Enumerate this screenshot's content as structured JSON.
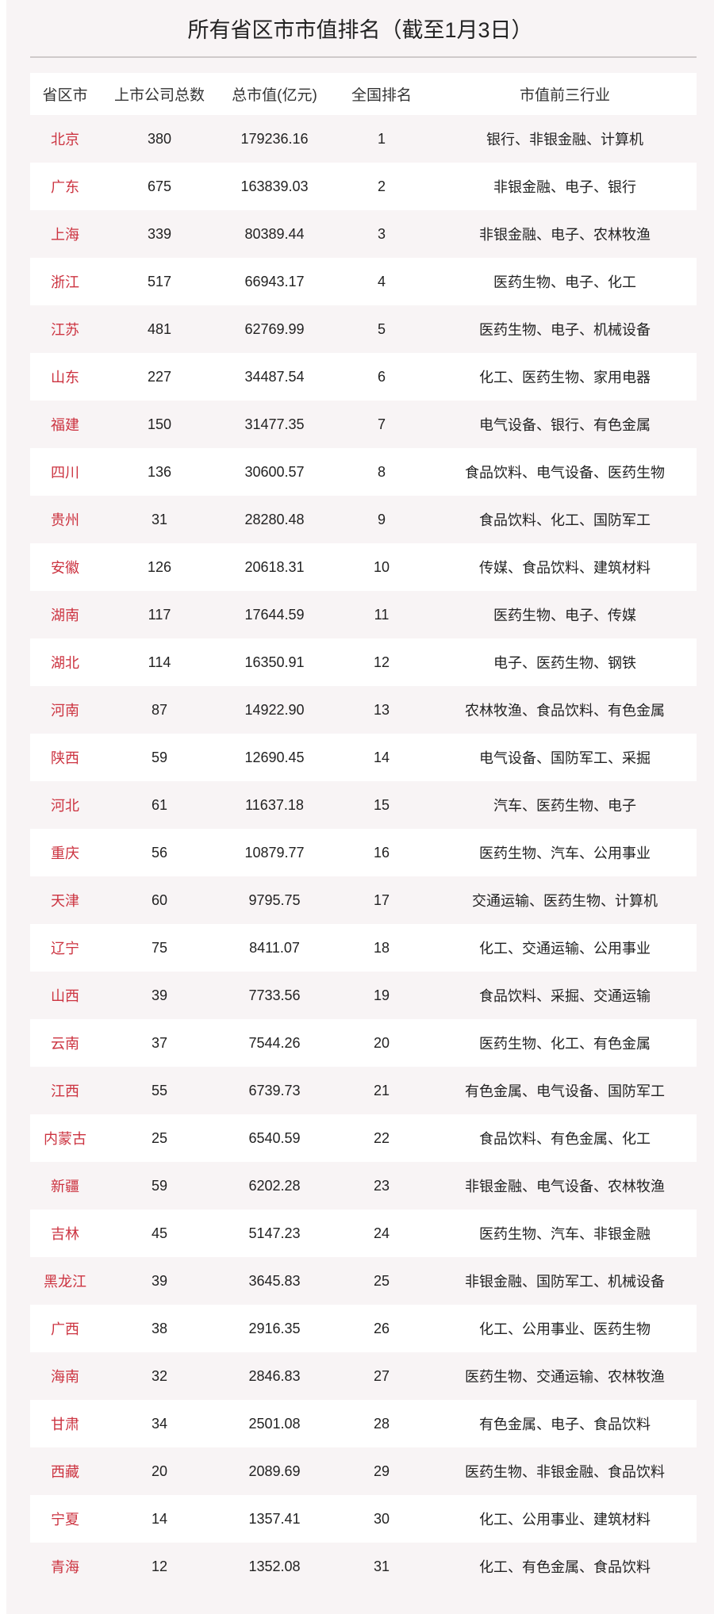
{
  "title": "所有省区市市值排名（截至1月3日）",
  "colors": {
    "province": "#cc3340",
    "background": "#f8f4f5"
  },
  "headers": [
    "省区市",
    "上市公司总数",
    "总市值(亿元)",
    "全国排名",
    "市值前三行业"
  ],
  "rows": [
    [
      "北京",
      "380",
      "179236.16",
      "1",
      "银行、非银金融、计算机"
    ],
    [
      "广东",
      "675",
      "163839.03",
      "2",
      "非银金融、电子、银行"
    ],
    [
      "上海",
      "339",
      "80389.44",
      "3",
      "非银金融、电子、农林牧渔"
    ],
    [
      "浙江",
      "517",
      "66943.17",
      "4",
      "医药生物、电子、化工"
    ],
    [
      "江苏",
      "481",
      "62769.99",
      "5",
      "医药生物、电子、机械设备"
    ],
    [
      "山东",
      "227",
      "34487.54",
      "6",
      "化工、医药生物、家用电器"
    ],
    [
      "福建",
      "150",
      "31477.35",
      "7",
      "电气设备、银行、有色金属"
    ],
    [
      "四川",
      "136",
      "30600.57",
      "8",
      "食品饮料、电气设备、医药生物"
    ],
    [
      "贵州",
      "31",
      "28280.48",
      "9",
      "食品饮料、化工、国防军工"
    ],
    [
      "安徽",
      "126",
      "20618.31",
      "10",
      "传媒、食品饮料、建筑材料"
    ],
    [
      "湖南",
      "117",
      "17644.59",
      "11",
      "医药生物、电子、传媒"
    ],
    [
      "湖北",
      "114",
      "16350.91",
      "12",
      "电子、医药生物、钢铁"
    ],
    [
      "河南",
      "87",
      "14922.90",
      "13",
      "农林牧渔、食品饮料、有色金属"
    ],
    [
      "陕西",
      "59",
      "12690.45",
      "14",
      "电气设备、国防军工、采掘"
    ],
    [
      "河北",
      "61",
      "11637.18",
      "15",
      "汽车、医药生物、电子"
    ],
    [
      "重庆",
      "56",
      "10879.77",
      "16",
      "医药生物、汽车、公用事业"
    ],
    [
      "天津",
      "60",
      "9795.75",
      "17",
      "交通运输、医药生物、计算机"
    ],
    [
      "辽宁",
      "75",
      "8411.07",
      "18",
      "化工、交通运输、公用事业"
    ],
    [
      "山西",
      "39",
      "7733.56",
      "19",
      "食品饮料、采掘、交通运输"
    ],
    [
      "云南",
      "37",
      "7544.26",
      "20",
      "医药生物、化工、有色金属"
    ],
    [
      "江西",
      "55",
      "6739.73",
      "21",
      "有色金属、电气设备、国防军工"
    ],
    [
      "内蒙古",
      "25",
      "6540.59",
      "22",
      "食品饮料、有色金属、化工"
    ],
    [
      "新疆",
      "59",
      "6202.28",
      "23",
      "非银金融、电气设备、农林牧渔"
    ],
    [
      "吉林",
      "45",
      "5147.23",
      "24",
      "医药生物、汽车、非银金融"
    ],
    [
      "黑龙江",
      "39",
      "3645.83",
      "25",
      "非银金融、国防军工、机械设备"
    ],
    [
      "广西",
      "38",
      "2916.35",
      "26",
      "化工、公用事业、医药生物"
    ],
    [
      "海南",
      "32",
      "2846.83",
      "27",
      "医药生物、交通运输、农林牧渔"
    ],
    [
      "甘肃",
      "34",
      "2501.08",
      "28",
      "有色金属、电子、食品饮料"
    ],
    [
      "西藏",
      "20",
      "2089.69",
      "29",
      "医药生物、非银金融、食品饮料"
    ],
    [
      "宁夏",
      "14",
      "1357.41",
      "30",
      "化工、公用事业、建筑材料"
    ],
    [
      "青海",
      "12",
      "1352.08",
      "31",
      "化工、有色金属、食品饮料"
    ]
  ]
}
